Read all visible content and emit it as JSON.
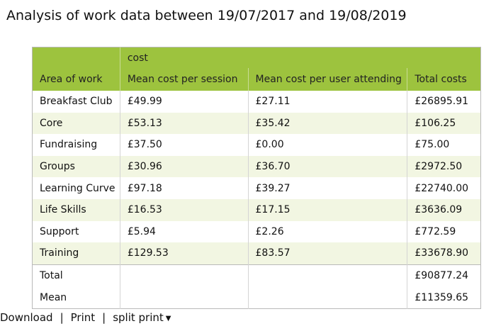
{
  "title": "Analysis of work data between 19/07/2017 and 19/08/2019",
  "table": {
    "group_header": "cost",
    "columns": [
      "Area of work",
      "Mean cost per session",
      "Mean cost per user attending",
      "Total costs"
    ],
    "rows": [
      [
        "Breakfast Club",
        "£49.99",
        "£27.11",
        "£26895.91"
      ],
      [
        "Core",
        "£53.13",
        "£35.42",
        "£106.25"
      ],
      [
        "Fundraising",
        "£37.50",
        "£0.00",
        "£75.00"
      ],
      [
        "Groups",
        "£30.96",
        "£36.70",
        "£2972.50"
      ],
      [
        "Learning Curve",
        "£97.18",
        "£39.27",
        "£22740.00"
      ],
      [
        "Life Skills",
        "£16.53",
        "£17.15",
        "£3636.09"
      ],
      [
        "Support",
        "£5.94",
        "£2.26",
        "£772.59"
      ],
      [
        "Training",
        "£129.53",
        "£83.57",
        "£33678.90"
      ]
    ],
    "summary": [
      {
        "label": "Total",
        "value": "£90877.24"
      },
      {
        "label": "Mean",
        "value": "£11359.65"
      }
    ]
  },
  "footer": {
    "download": "Download",
    "separator": "|",
    "print": "Print",
    "split_print": "split print",
    "caret_icon": "caret-down-icon"
  },
  "colors": {
    "header_bg": "#9dc33e",
    "alt_row_bg": "#f2f6e2"
  }
}
